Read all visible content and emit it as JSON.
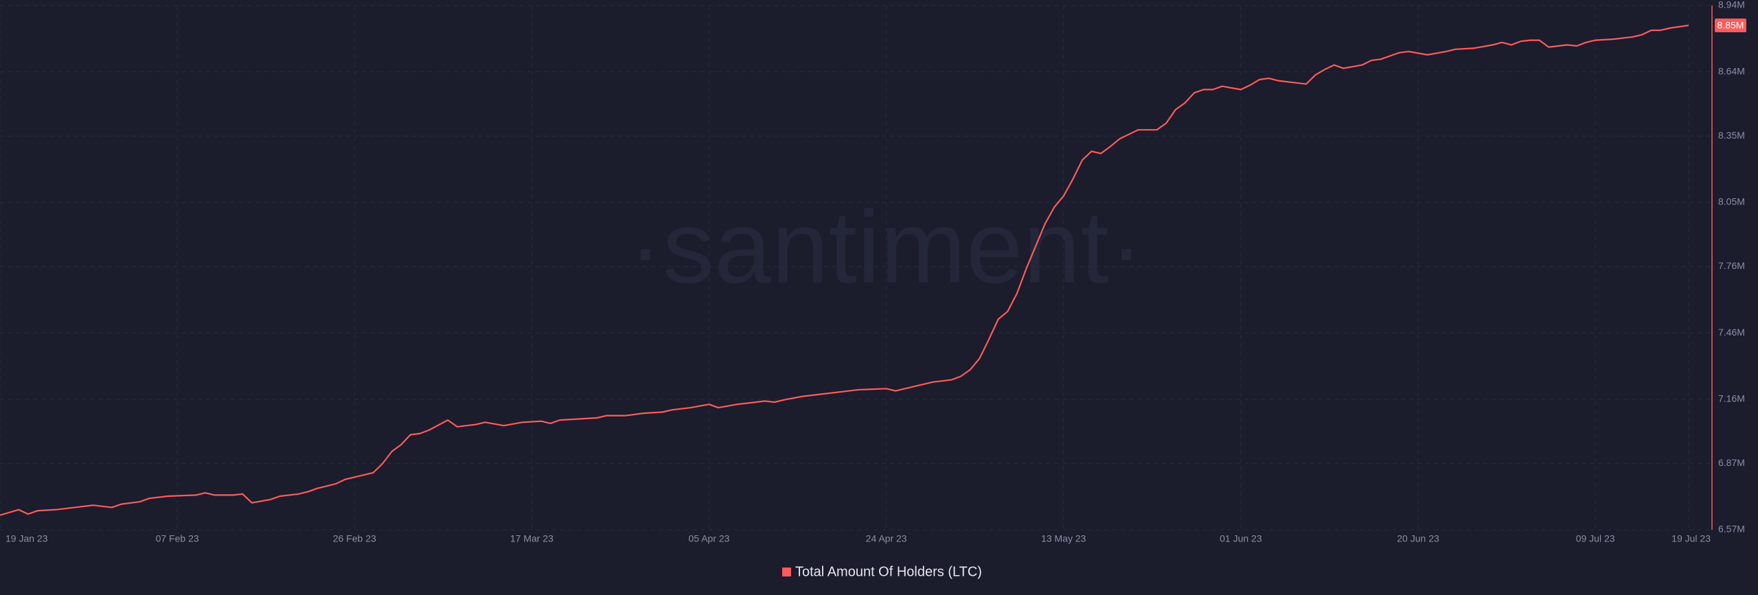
{
  "chart_data": {
    "type": "line",
    "watermark": "·santiment·",
    "x": [
      "2023-01-19",
      "2023-01-21",
      "2023-01-22",
      "2023-01-23",
      "2023-01-25",
      "2023-01-27",
      "2023-01-29",
      "2023-01-31",
      "2023-02-01",
      "2023-02-03",
      "2023-02-04",
      "2023-02-06",
      "2023-02-09",
      "2023-02-10",
      "2023-02-11",
      "2023-02-13",
      "2023-02-14",
      "2023-02-15",
      "2023-02-17",
      "2023-02-18",
      "2023-02-20",
      "2023-02-21",
      "2023-02-22",
      "2023-02-24",
      "2023-02-25",
      "2023-02-27",
      "2023-02-28",
      "2023-03-01",
      "2023-03-02",
      "2023-03-03",
      "2023-03-04",
      "2023-03-05",
      "2023-03-06",
      "2023-03-08",
      "2023-03-09",
      "2023-03-11",
      "2023-03-12",
      "2023-03-14",
      "2023-03-16",
      "2023-03-18",
      "2023-03-19",
      "2023-03-20",
      "2023-03-22",
      "2023-03-24",
      "2023-03-25",
      "2023-03-27",
      "2023-03-29",
      "2023-03-31",
      "2023-04-01",
      "2023-04-03",
      "2023-04-05",
      "2023-04-06",
      "2023-04-08",
      "2023-04-09",
      "2023-04-11",
      "2023-04-12",
      "2023-04-13",
      "2023-04-15",
      "2023-04-17",
      "2023-04-19",
      "2023-04-21",
      "2023-04-24",
      "2023-04-25",
      "2023-04-27",
      "2023-04-29",
      "2023-05-01",
      "2023-05-02",
      "2023-05-03",
      "2023-05-04",
      "2023-05-05",
      "2023-05-06",
      "2023-05-07",
      "2023-05-08",
      "2023-05-09",
      "2023-05-10",
      "2023-05-11",
      "2023-05-12",
      "2023-05-13",
      "2023-05-14",
      "2023-05-15",
      "2023-05-16",
      "2023-05-17",
      "2023-05-18",
      "2023-05-19",
      "2023-05-21",
      "2023-05-23",
      "2023-05-24",
      "2023-05-25",
      "2023-05-26",
      "2023-05-27",
      "2023-05-28",
      "2023-05-29",
      "2023-05-30",
      "2023-06-01",
      "2023-06-02",
      "2023-06-03",
      "2023-06-04",
      "2023-06-05",
      "2023-06-07",
      "2023-06-08",
      "2023-06-09",
      "2023-06-10",
      "2023-06-11",
      "2023-06-12",
      "2023-06-14",
      "2023-06-15",
      "2023-06-16",
      "2023-06-18",
      "2023-06-19",
      "2023-06-21",
      "2023-06-23",
      "2023-06-24",
      "2023-06-26",
      "2023-06-28",
      "2023-06-29",
      "2023-06-30",
      "2023-07-01",
      "2023-07-02",
      "2023-07-03",
      "2023-07-04",
      "2023-07-06",
      "2023-07-07",
      "2023-07-08",
      "2023-07-09",
      "2023-07-11",
      "2023-07-13",
      "2023-07-14",
      "2023-07-15",
      "2023-07-16",
      "2023-07-17",
      "2023-07-19"
    ],
    "series": [
      {
        "name": "Total Amount Of Holders (LTC)",
        "color": "#ff5b5b",
        "values": [
          6636000,
          6661000,
          6641000,
          6656000,
          6661000,
          6671000,
          6681000,
          6671000,
          6686000,
          6697000,
          6712000,
          6722000,
          6727000,
          6737000,
          6727000,
          6727000,
          6732000,
          6692000,
          6707000,
          6722000,
          6732000,
          6742000,
          6757000,
          6778000,
          6798000,
          6818000,
          6828000,
          6869000,
          6924000,
          6955000,
          7000000,
          7005000,
          7021000,
          7066000,
          7036000,
          7046000,
          7056000,
          7041000,
          7056000,
          7061000,
          7051000,
          7066000,
          7071000,
          7076000,
          7086000,
          7086000,
          7097000,
          7102000,
          7112000,
          7122000,
          7137000,
          7122000,
          7137000,
          7142000,
          7152000,
          7147000,
          7157000,
          7173000,
          7183000,
          7193000,
          7203000,
          7208000,
          7198000,
          7218000,
          7238000,
          7248000,
          7264000,
          7294000,
          7345000,
          7431000,
          7522000,
          7557000,
          7638000,
          7750000,
          7851000,
          7952000,
          8028000,
          8079000,
          8155000,
          8241000,
          8281000,
          8271000,
          8302000,
          8337000,
          8378000,
          8378000,
          8408000,
          8469000,
          8499000,
          8545000,
          8560000,
          8560000,
          8575000,
          8560000,
          8580000,
          8605000,
          8611000,
          8600000,
          8590000,
          8585000,
          8626000,
          8651000,
          8671000,
          8656000,
          8671000,
          8692000,
          8697000,
          8727000,
          8732000,
          8717000,
          8732000,
          8742000,
          8747000,
          8762000,
          8773000,
          8762000,
          8778000,
          8783000,
          8783000,
          8752000,
          8762000,
          8757000,
          8773000,
          8783000,
          8788000,
          8798000,
          8808000,
          8828000,
          8828000,
          8838000,
          8850000
        ],
        "value_labels": [
          null,
          null,
          null,
          null,
          null,
          null,
          null,
          null,
          null,
          null,
          null,
          null,
          null,
          null,
          null,
          null,
          null,
          null,
          null,
          null,
          null,
          null,
          null,
          null,
          null,
          null,
          null,
          null,
          null,
          null,
          null,
          null,
          null,
          null,
          null,
          null,
          null,
          null,
          null,
          null,
          null,
          null,
          null,
          null,
          null,
          null,
          null,
          null,
          null,
          null,
          null,
          null,
          null,
          null,
          null,
          null,
          null,
          null,
          null,
          null,
          null,
          null,
          null,
          null,
          null,
          null,
          null,
          null,
          null,
          null,
          null,
          null,
          null,
          null,
          null,
          null,
          null,
          null,
          null,
          null,
          null,
          null,
          null,
          null,
          null,
          null,
          null,
          null,
          null,
          null,
          null,
          null,
          null,
          null,
          null,
          null,
          null,
          null,
          null,
          null,
          null,
          null,
          null,
          null,
          null,
          null,
          null,
          null,
          null,
          null,
          null,
          null,
          null,
          null,
          null,
          null,
          null,
          null,
          null,
          null,
          null,
          null,
          null,
          null,
          null,
          null,
          null,
          null,
          null,
          null,
          "8.85M"
        ]
      }
    ],
    "xlim": [
      "2023-01-19",
      "2023-07-19"
    ],
    "xticks": [
      {
        "value": "2023-01-19",
        "label": "19 Jan 23"
      },
      {
        "value": "2023-02-07",
        "label": "07 Feb 23"
      },
      {
        "value": "2023-02-26",
        "label": "26 Feb 23"
      },
      {
        "value": "2023-03-17",
        "label": "17 Mar 23"
      },
      {
        "value": "2023-04-05",
        "label": "05 Apr 23"
      },
      {
        "value": "2023-04-24",
        "label": "24 Apr 23"
      },
      {
        "value": "2023-05-13",
        "label": "13 May 23"
      },
      {
        "value": "2023-06-01",
        "label": "01 Jun 23"
      },
      {
        "value": "2023-06-20",
        "label": "20 Jun 23"
      },
      {
        "value": "2023-07-09",
        "label": "09 Jul 23"
      },
      {
        "value": "2023-07-19",
        "label": "19 Jul 23"
      }
    ],
    "ylim": [
      6570000,
      8940000
    ],
    "yticks": [
      {
        "value": 6570000,
        "label": "6.57M"
      },
      {
        "value": 6870000,
        "label": "6.87M"
      },
      {
        "value": 7160000,
        "label": "7.16M"
      },
      {
        "value": 7460000,
        "label": "7.46M"
      },
      {
        "value": 7760000,
        "label": "7.76M"
      },
      {
        "value": 8050000,
        "label": "8.05M"
      },
      {
        "value": 8350000,
        "label": "8.35M"
      },
      {
        "value": 8640000,
        "label": "8.64M"
      },
      {
        "value": 8940000,
        "label": "8.94M"
      }
    ],
    "grid": true
  }
}
